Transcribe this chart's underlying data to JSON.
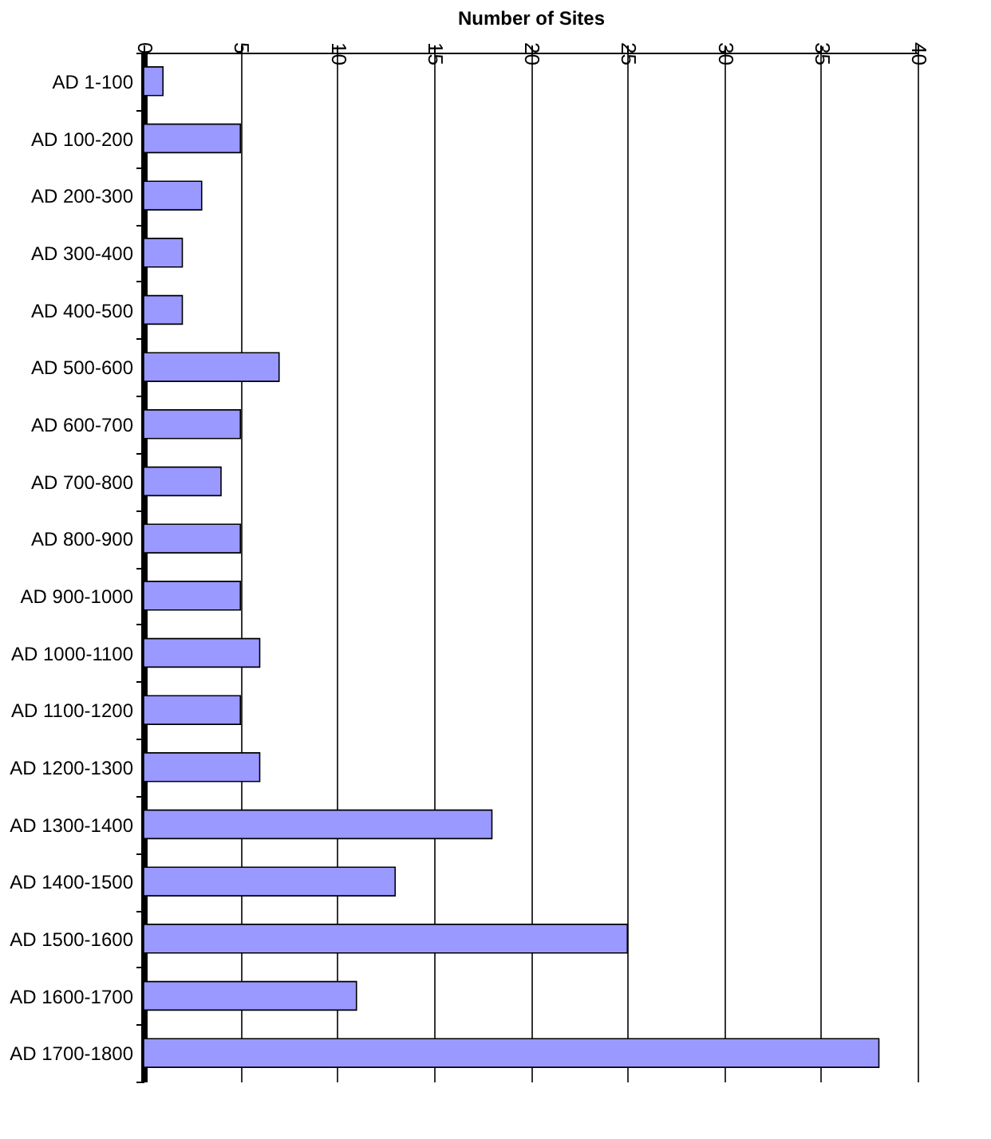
{
  "chart_data": {
    "type": "bar",
    "orientation": "horizontal",
    "xlabel": "Number of Sites",
    "categories": [
      "AD 1-100",
      "AD 100-200",
      "AD 200-300",
      "AD 300-400",
      "AD 400-500",
      "AD 500-600",
      "AD 600-700",
      "AD 700-800",
      "AD 800-900",
      "AD 900-1000",
      "AD 1000-1100",
      "AD 1100-1200",
      "AD 1200-1300",
      "AD 1300-1400",
      "AD 1400-1500",
      "AD 1500-1600",
      "AD 1600-1700",
      "AD 1700-1800"
    ],
    "values": [
      1,
      5,
      3,
      2,
      2,
      7,
      5,
      4,
      5,
      5,
      6,
      5,
      6,
      18,
      13,
      25,
      11,
      38
    ],
    "color": "#9999ff",
    "xlim": [
      0,
      40
    ],
    "xticks": [
      0,
      5,
      10,
      15,
      20,
      25,
      30,
      35,
      40
    ],
    "grid": "x"
  }
}
